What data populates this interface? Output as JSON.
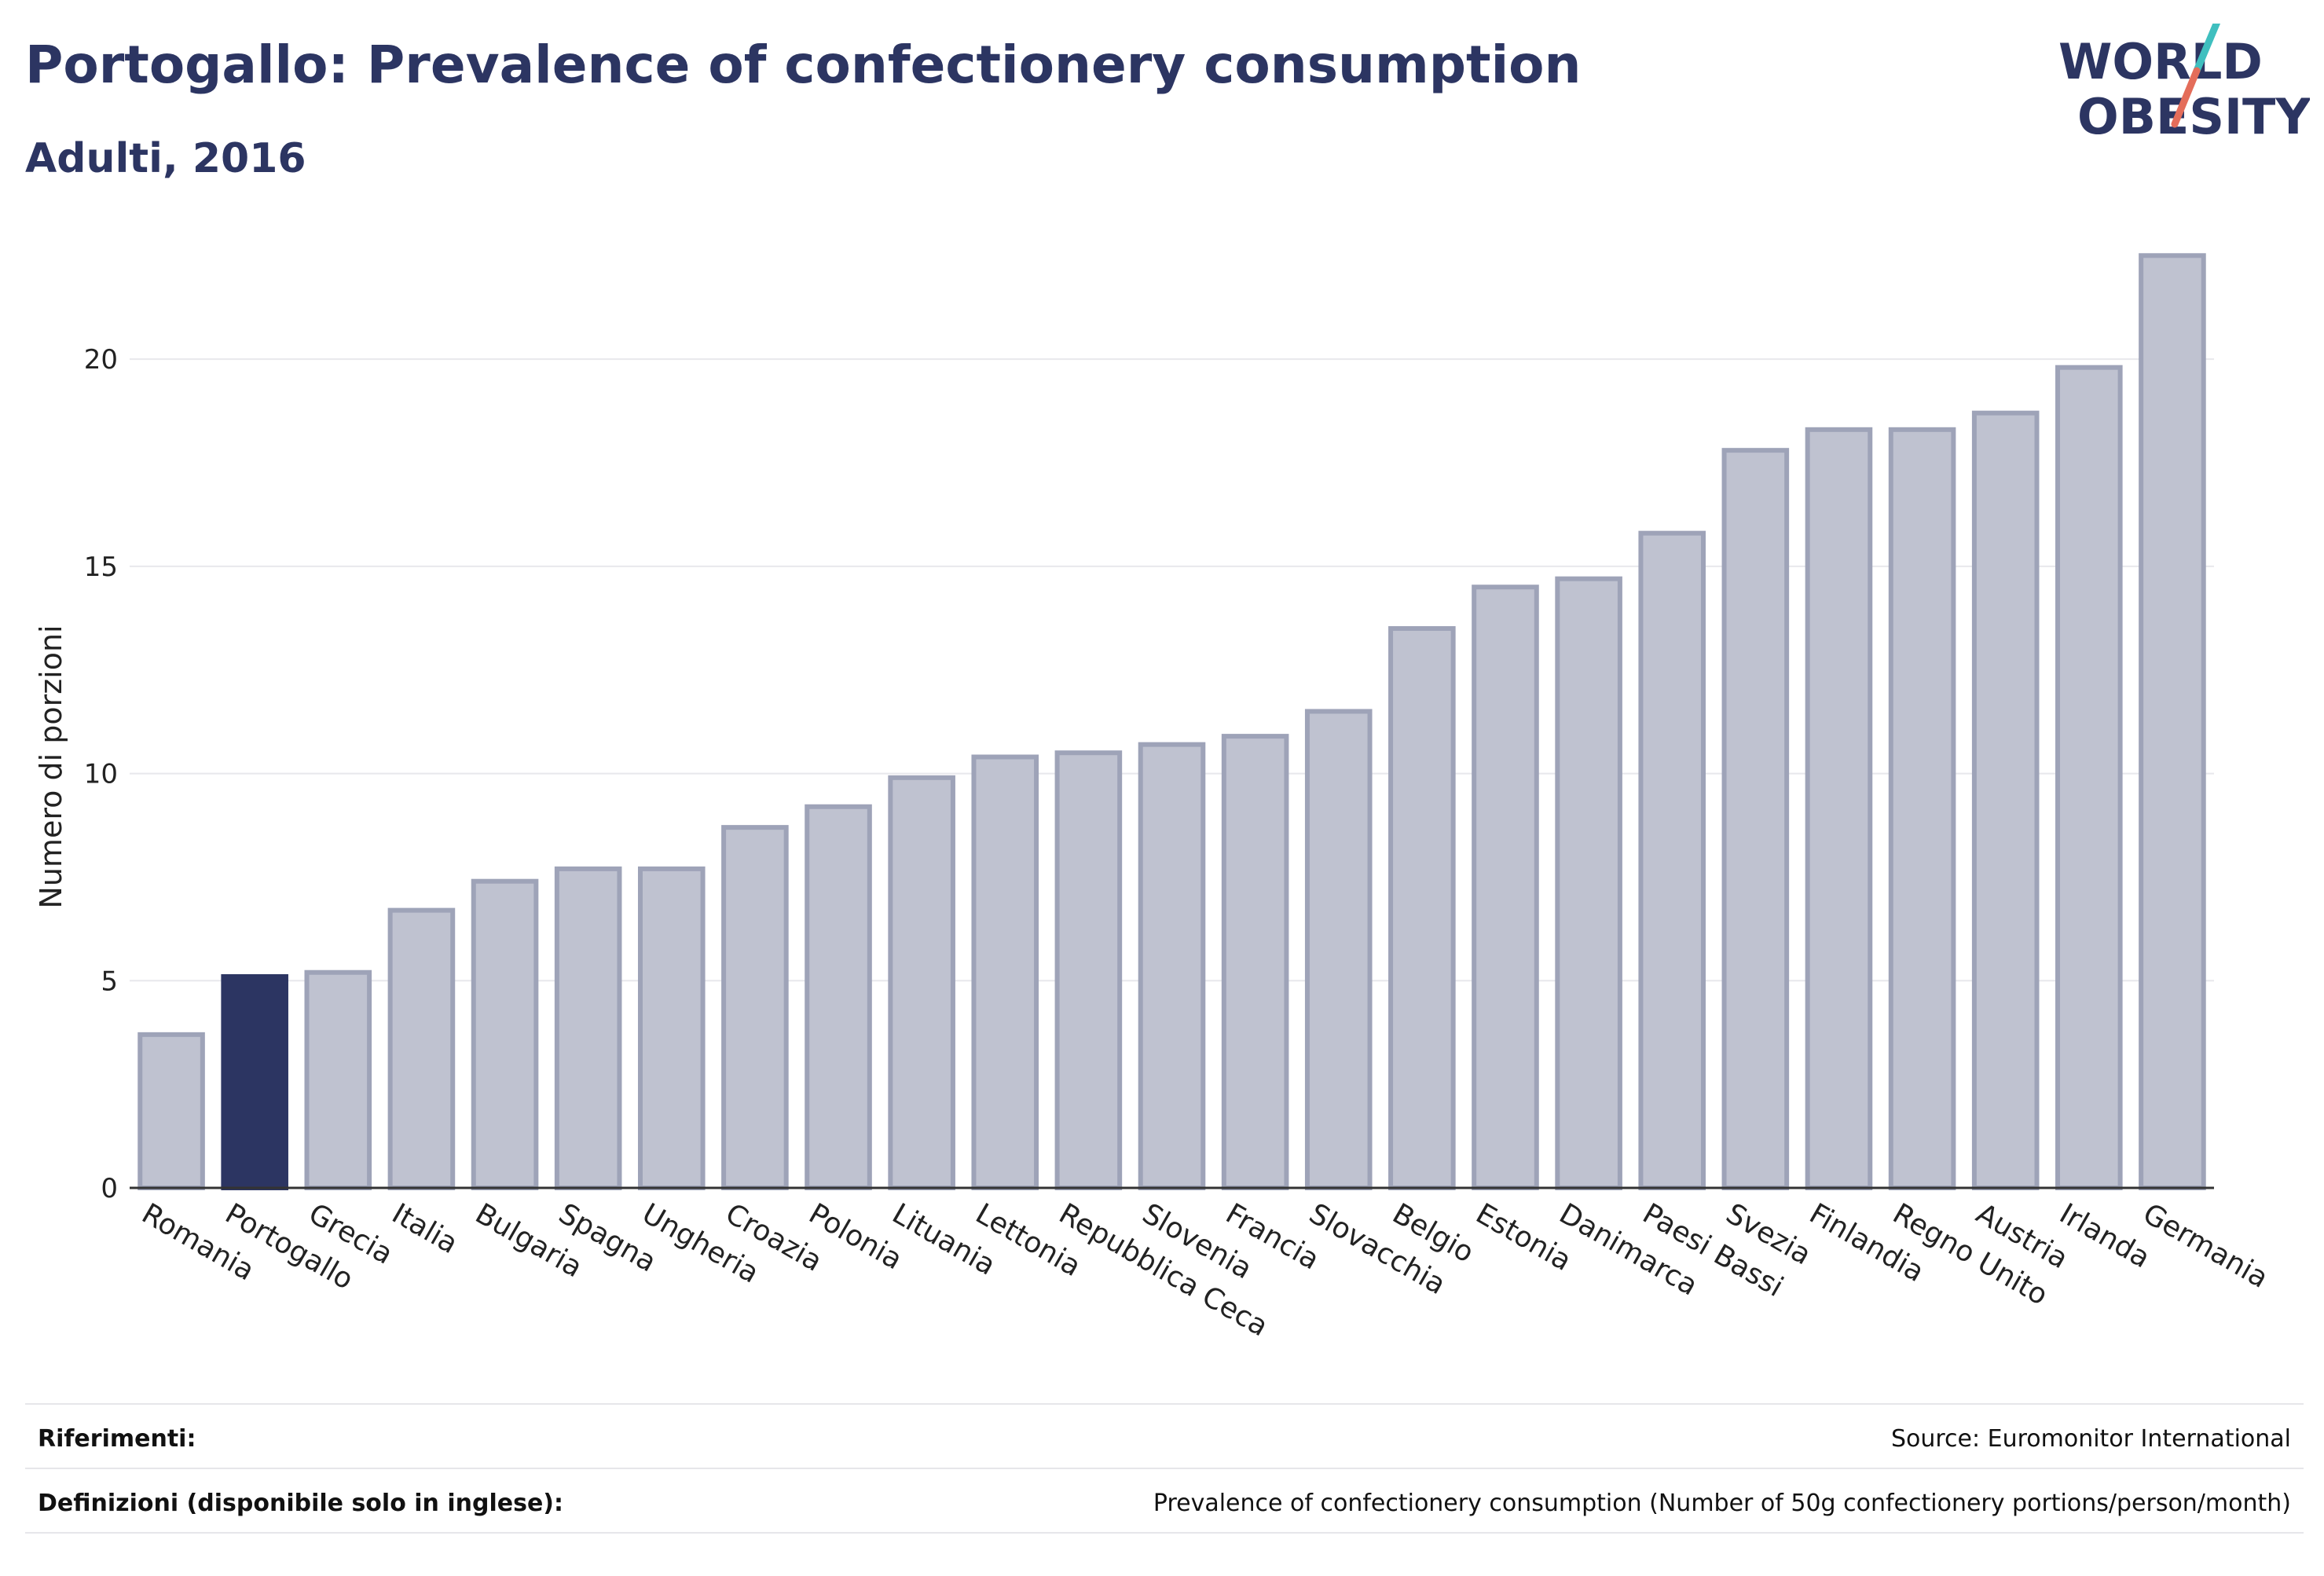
{
  "header": {
    "title": "Portogallo: Prevalence of confectionery consumption",
    "subtitle": "Adulti, 2016"
  },
  "logo": {
    "line1": "WORLD",
    "line2": "OBESITY"
  },
  "colors": {
    "highlight": "#2c3562",
    "bar_fill": "#bfc2d0",
    "bar_stroke": "#9ea3b8",
    "grid": "#e8e8ec",
    "logo_teal": "#3fbfbf",
    "logo_coral": "#e46d5a"
  },
  "chart_data": {
    "type": "bar",
    "ylabel": "Numero di porzioni",
    "ylim": [
      0,
      22.6
    ],
    "yticks": [
      0,
      5,
      10,
      15,
      20
    ],
    "grid": true,
    "highlight": "Portogallo",
    "categories": [
      "Romania",
      "Portogallo",
      "Grecia",
      "Italia",
      "Bulgaria",
      "Spagna",
      "Ungheria",
      "Croazia",
      "Polonia",
      "Lituania",
      "Lettonia",
      "Repubblica Ceca",
      "Slovenia",
      "Francia",
      "Slovacchia",
      "Belgio",
      "Estonia",
      "Danimarca",
      "Paesi Bassi",
      "Svezia",
      "Finlandia",
      "Regno Unito",
      "Austria",
      "Irlanda",
      "Germania"
    ],
    "values": [
      3.7,
      5.1,
      5.2,
      6.7,
      7.4,
      7.7,
      7.7,
      8.7,
      9.2,
      9.9,
      10.4,
      10.5,
      10.7,
      10.9,
      11.5,
      13.5,
      14.5,
      14.7,
      15.8,
      17.8,
      18.3,
      18.3,
      18.7,
      19.8,
      22.5
    ]
  },
  "footer": {
    "references_label": "Riferimenti:",
    "references_value": "Source: Euromonitor International",
    "definitions_label": "Definizioni (disponibile solo in inglese):",
    "definitions_value": "Prevalence of confectionery consumption (Number of 50g confectionery portions/person/month)"
  }
}
